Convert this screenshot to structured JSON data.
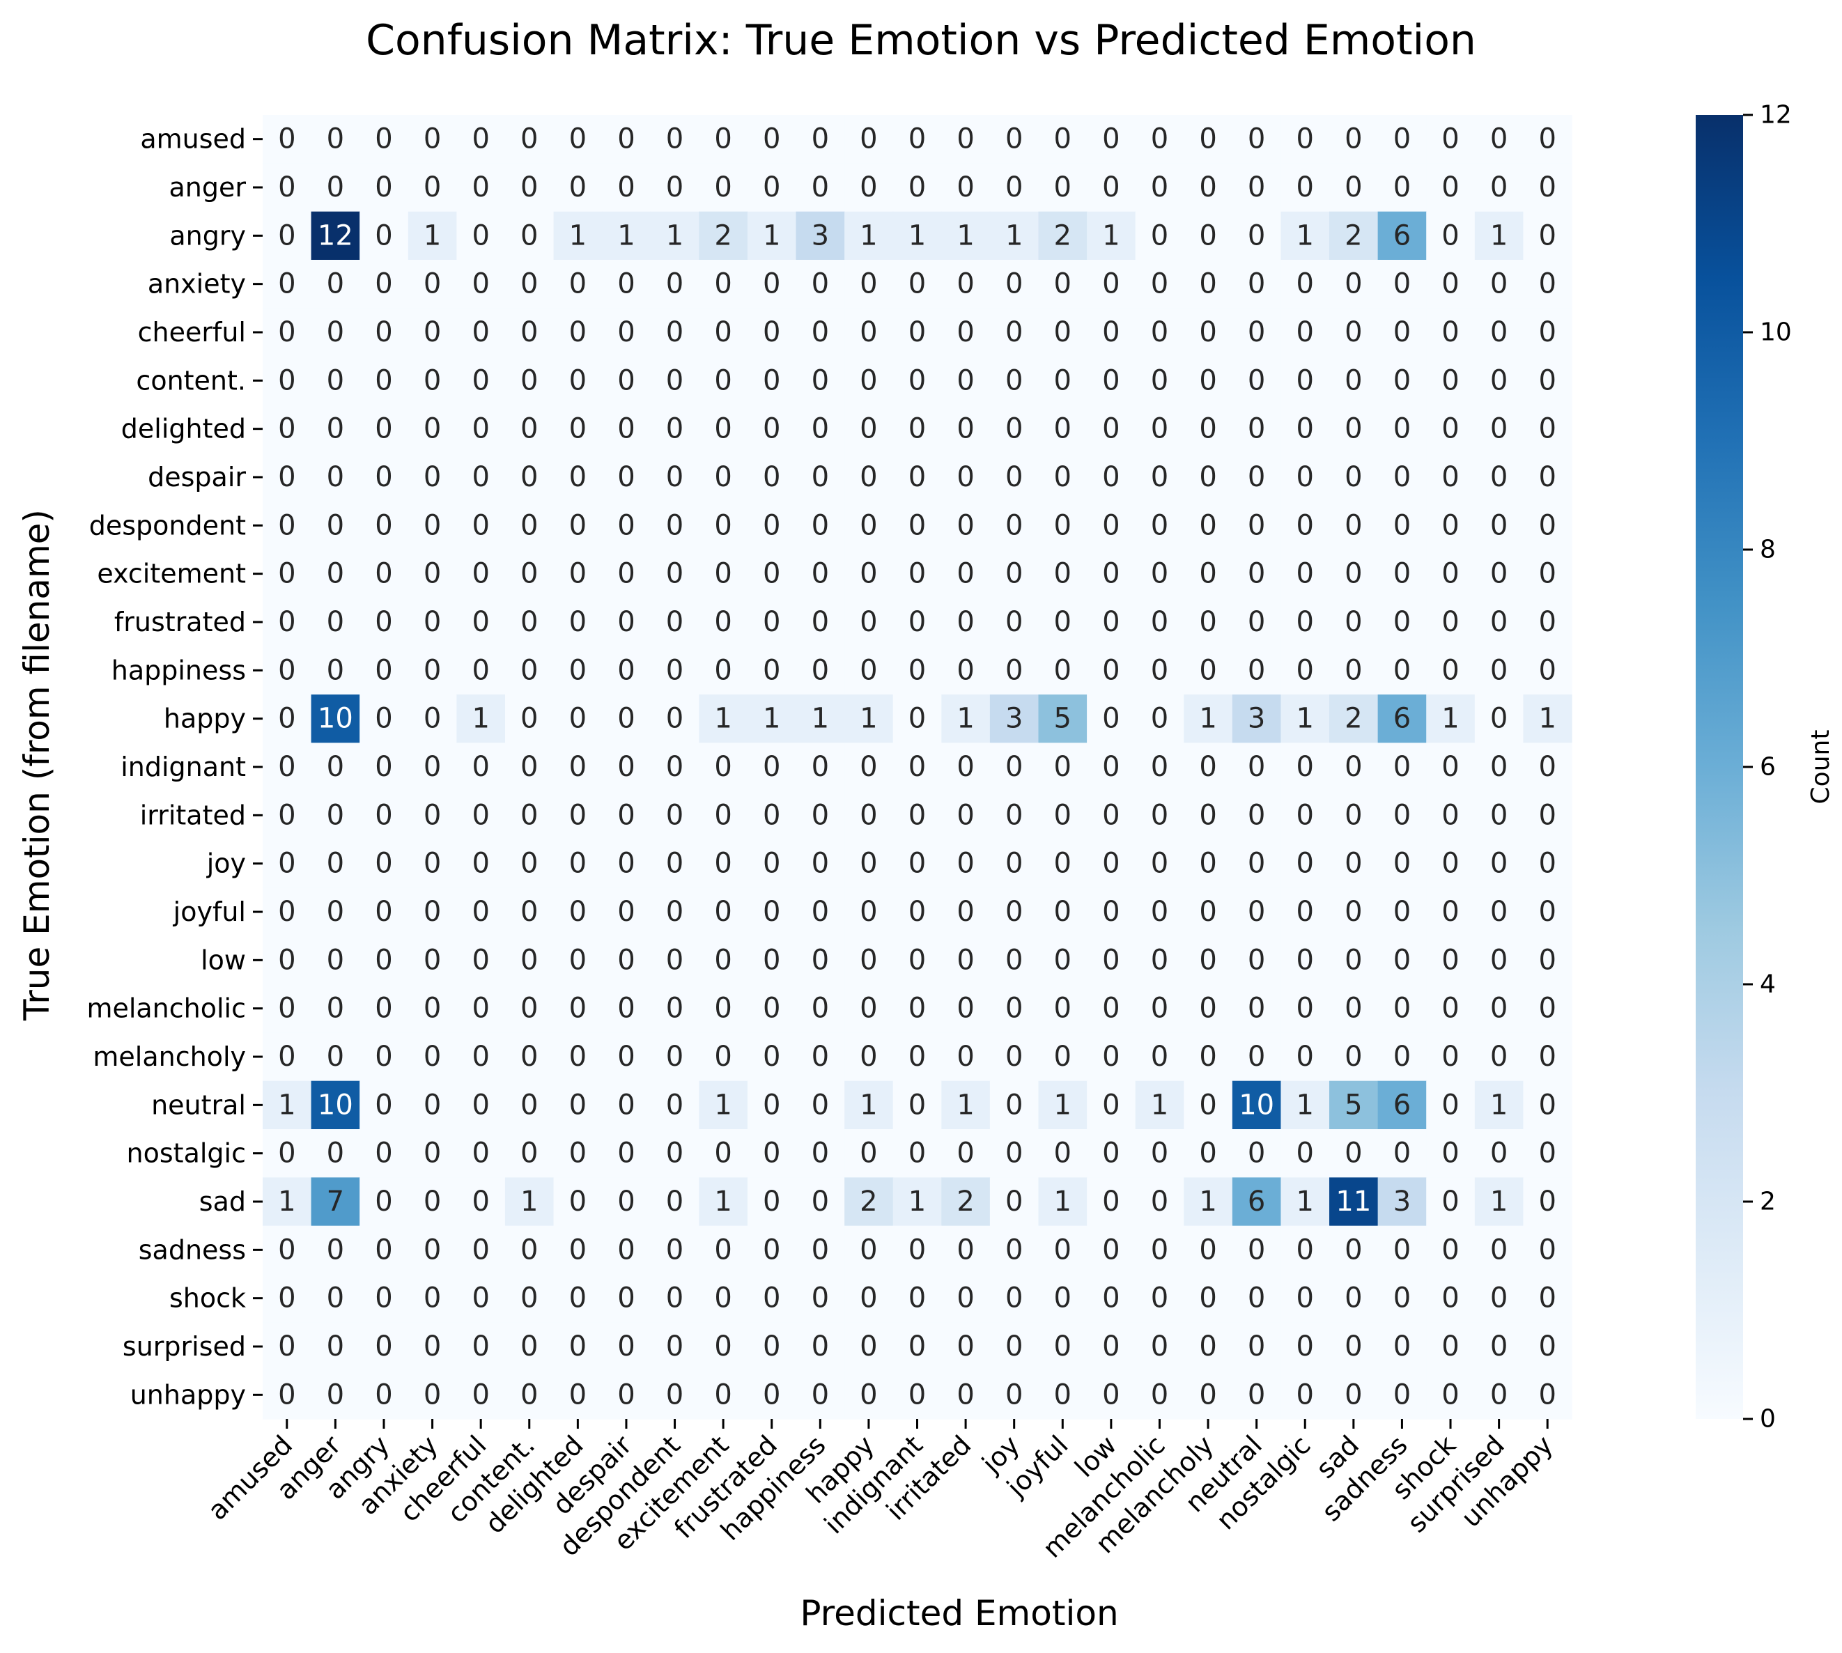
{
  "chart_data": {
    "type": "heatmap",
    "title": "Confusion Matrix: True Emotion vs Predicted Emotion",
    "xlabel": "Predicted Emotion",
    "ylabel": "True Emotion (from filename)",
    "colorbar_label": "Count",
    "colorbar_ticks": [
      "0",
      "2",
      "4",
      "6",
      "8",
      "10",
      "12"
    ],
    "vmin": 0,
    "vmax": 12,
    "colormap": "Blues",
    "x_categories": [
      "amused",
      "anger",
      "angry",
      "anxiety",
      "cheerful",
      "content.",
      "delighted",
      "despair",
      "despondent",
      "excitement",
      "frustrated",
      "happiness",
      "happy",
      "indignant",
      "irritated",
      "joy",
      "joyful",
      "low",
      "melancholic",
      "melancholy",
      "neutral",
      "nostalgic",
      "sad",
      "sadness",
      "shock",
      "surprised",
      "unhappy"
    ],
    "y_categories": [
      "amused",
      "anger",
      "angry",
      "anxiety",
      "cheerful",
      "content.",
      "delighted",
      "despair",
      "despondent",
      "excitement",
      "frustrated",
      "happiness",
      "happy",
      "indignant",
      "irritated",
      "joy",
      "joyful",
      "low",
      "melancholic",
      "melancholy",
      "neutral",
      "nostalgic",
      "sad",
      "sadness",
      "shock",
      "surprised",
      "unhappy"
    ],
    "values": [
      [
        0,
        0,
        0,
        0,
        0,
        0,
        0,
        0,
        0,
        0,
        0,
        0,
        0,
        0,
        0,
        0,
        0,
        0,
        0,
        0,
        0,
        0,
        0,
        0,
        0,
        0,
        0
      ],
      [
        0,
        0,
        0,
        0,
        0,
        0,
        0,
        0,
        0,
        0,
        0,
        0,
        0,
        0,
        0,
        0,
        0,
        0,
        0,
        0,
        0,
        0,
        0,
        0,
        0,
        0,
        0
      ],
      [
        0,
        12,
        0,
        1,
        0,
        0,
        1,
        1,
        1,
        2,
        1,
        3,
        1,
        1,
        1,
        1,
        2,
        1,
        0,
        0,
        0,
        1,
        2,
        6,
        0,
        1,
        0
      ],
      [
        0,
        0,
        0,
        0,
        0,
        0,
        0,
        0,
        0,
        0,
        0,
        0,
        0,
        0,
        0,
        0,
        0,
        0,
        0,
        0,
        0,
        0,
        0,
        0,
        0,
        0,
        0
      ],
      [
        0,
        0,
        0,
        0,
        0,
        0,
        0,
        0,
        0,
        0,
        0,
        0,
        0,
        0,
        0,
        0,
        0,
        0,
        0,
        0,
        0,
        0,
        0,
        0,
        0,
        0,
        0
      ],
      [
        0,
        0,
        0,
        0,
        0,
        0,
        0,
        0,
        0,
        0,
        0,
        0,
        0,
        0,
        0,
        0,
        0,
        0,
        0,
        0,
        0,
        0,
        0,
        0,
        0,
        0,
        0
      ],
      [
        0,
        0,
        0,
        0,
        0,
        0,
        0,
        0,
        0,
        0,
        0,
        0,
        0,
        0,
        0,
        0,
        0,
        0,
        0,
        0,
        0,
        0,
        0,
        0,
        0,
        0,
        0
      ],
      [
        0,
        0,
        0,
        0,
        0,
        0,
        0,
        0,
        0,
        0,
        0,
        0,
        0,
        0,
        0,
        0,
        0,
        0,
        0,
        0,
        0,
        0,
        0,
        0,
        0,
        0,
        0
      ],
      [
        0,
        0,
        0,
        0,
        0,
        0,
        0,
        0,
        0,
        0,
        0,
        0,
        0,
        0,
        0,
        0,
        0,
        0,
        0,
        0,
        0,
        0,
        0,
        0,
        0,
        0,
        0
      ],
      [
        0,
        0,
        0,
        0,
        0,
        0,
        0,
        0,
        0,
        0,
        0,
        0,
        0,
        0,
        0,
        0,
        0,
        0,
        0,
        0,
        0,
        0,
        0,
        0,
        0,
        0,
        0
      ],
      [
        0,
        0,
        0,
        0,
        0,
        0,
        0,
        0,
        0,
        0,
        0,
        0,
        0,
        0,
        0,
        0,
        0,
        0,
        0,
        0,
        0,
        0,
        0,
        0,
        0,
        0,
        0
      ],
      [
        0,
        0,
        0,
        0,
        0,
        0,
        0,
        0,
        0,
        0,
        0,
        0,
        0,
        0,
        0,
        0,
        0,
        0,
        0,
        0,
        0,
        0,
        0,
        0,
        0,
        0,
        0
      ],
      [
        0,
        10,
        0,
        0,
        1,
        0,
        0,
        0,
        0,
        1,
        1,
        1,
        1,
        0,
        1,
        3,
        5,
        0,
        0,
        1,
        3,
        1,
        2,
        6,
        1,
        0,
        1
      ],
      [
        0,
        0,
        0,
        0,
        0,
        0,
        0,
        0,
        0,
        0,
        0,
        0,
        0,
        0,
        0,
        0,
        0,
        0,
        0,
        0,
        0,
        0,
        0,
        0,
        0,
        0,
        0
      ],
      [
        0,
        0,
        0,
        0,
        0,
        0,
        0,
        0,
        0,
        0,
        0,
        0,
        0,
        0,
        0,
        0,
        0,
        0,
        0,
        0,
        0,
        0,
        0,
        0,
        0,
        0,
        0
      ],
      [
        0,
        0,
        0,
        0,
        0,
        0,
        0,
        0,
        0,
        0,
        0,
        0,
        0,
        0,
        0,
        0,
        0,
        0,
        0,
        0,
        0,
        0,
        0,
        0,
        0,
        0,
        0
      ],
      [
        0,
        0,
        0,
        0,
        0,
        0,
        0,
        0,
        0,
        0,
        0,
        0,
        0,
        0,
        0,
        0,
        0,
        0,
        0,
        0,
        0,
        0,
        0,
        0,
        0,
        0,
        0
      ],
      [
        0,
        0,
        0,
        0,
        0,
        0,
        0,
        0,
        0,
        0,
        0,
        0,
        0,
        0,
        0,
        0,
        0,
        0,
        0,
        0,
        0,
        0,
        0,
        0,
        0,
        0,
        0
      ],
      [
        0,
        0,
        0,
        0,
        0,
        0,
        0,
        0,
        0,
        0,
        0,
        0,
        0,
        0,
        0,
        0,
        0,
        0,
        0,
        0,
        0,
        0,
        0,
        0,
        0,
        0,
        0
      ],
      [
        0,
        0,
        0,
        0,
        0,
        0,
        0,
        0,
        0,
        0,
        0,
        0,
        0,
        0,
        0,
        0,
        0,
        0,
        0,
        0,
        0,
        0,
        0,
        0,
        0,
        0,
        0
      ],
      [
        1,
        10,
        0,
        0,
        0,
        0,
        0,
        0,
        0,
        1,
        0,
        0,
        1,
        0,
        1,
        0,
        1,
        0,
        1,
        0,
        10,
        1,
        5,
        6,
        0,
        1,
        0
      ],
      [
        0,
        0,
        0,
        0,
        0,
        0,
        0,
        0,
        0,
        0,
        0,
        0,
        0,
        0,
        0,
        0,
        0,
        0,
        0,
        0,
        0,
        0,
        0,
        0,
        0,
        0,
        0
      ],
      [
        1,
        7,
        0,
        0,
        0,
        1,
        0,
        0,
        0,
        1,
        0,
        0,
        2,
        1,
        2,
        0,
        1,
        0,
        0,
        1,
        6,
        1,
        11,
        3,
        0,
        1,
        0
      ],
      [
        0,
        0,
        0,
        0,
        0,
        0,
        0,
        0,
        0,
        0,
        0,
        0,
        0,
        0,
        0,
        0,
        0,
        0,
        0,
        0,
        0,
        0,
        0,
        0,
        0,
        0,
        0
      ],
      [
        0,
        0,
        0,
        0,
        0,
        0,
        0,
        0,
        0,
        0,
        0,
        0,
        0,
        0,
        0,
        0,
        0,
        0,
        0,
        0,
        0,
        0,
        0,
        0,
        0,
        0,
        0
      ],
      [
        0,
        0,
        0,
        0,
        0,
        0,
        0,
        0,
        0,
        0,
        0,
        0,
        0,
        0,
        0,
        0,
        0,
        0,
        0,
        0,
        0,
        0,
        0,
        0,
        0,
        0,
        0
      ],
      [
        0,
        0,
        0,
        0,
        0,
        0,
        0,
        0,
        0,
        0,
        0,
        0,
        0,
        0,
        0,
        0,
        0,
        0,
        0,
        0,
        0,
        0,
        0,
        0,
        0,
        0,
        0
      ]
    ]
  }
}
